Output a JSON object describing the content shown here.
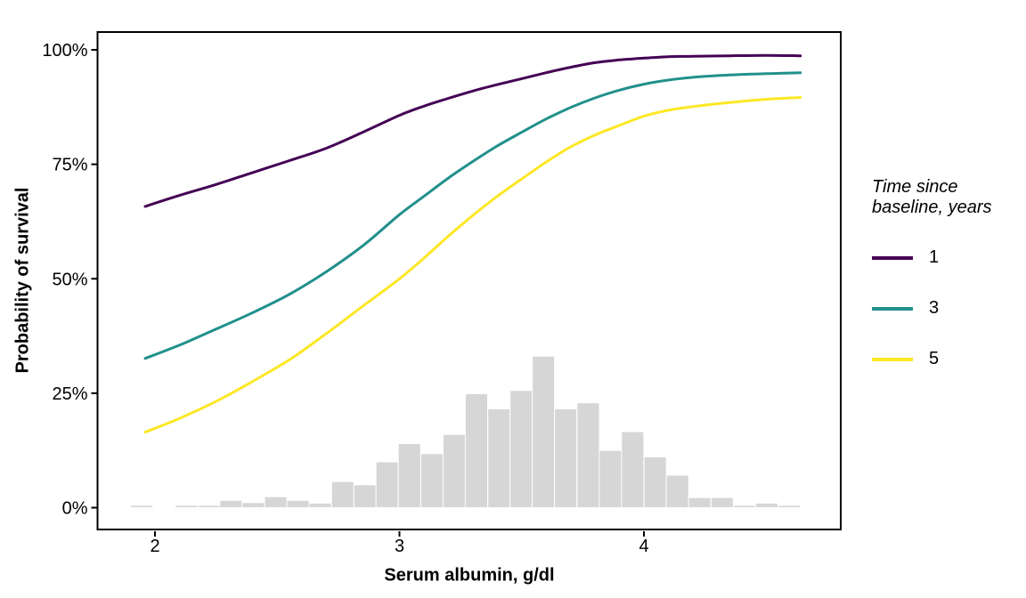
{
  "chart_data": {
    "type": "line+histogram",
    "title": "",
    "xlabel": "Serum albumin, g/dl",
    "ylabel": "Probability of survival",
    "legend_title": "Time since baseline, years",
    "legend_position": "right",
    "grid": false,
    "x_axis": {
      "ticks": [
        2,
        3,
        4
      ],
      "tick_labels": [
        "2",
        "3",
        "4"
      ],
      "range": [
        1.76,
        4.81
      ]
    },
    "y_axis": {
      "ticks_percent": [
        0,
        25,
        50,
        75,
        100
      ],
      "tick_labels": [
        "0%",
        "25%",
        "50%",
        "75%",
        "100%"
      ],
      "range_percent": [
        -5,
        104.5
      ]
    },
    "x": [
      1.96,
      2.1,
      2.25,
      2.4,
      2.55,
      2.7,
      2.85,
      3.0,
      3.1,
      3.2,
      3.3,
      3.4,
      3.5,
      3.6,
      3.7,
      3.8,
      3.9,
      4.0,
      4.1,
      4.2,
      4.35,
      4.5,
      4.64
    ],
    "series": [
      {
        "name": "1",
        "label": "1",
        "color": "#440154",
        "y_percent": [
          65.8,
          68.2,
          70.6,
          73.2,
          75.8,
          78.5,
          82.0,
          85.7,
          87.7,
          89.4,
          91.0,
          92.4,
          93.7,
          95.0,
          96.2,
          97.2,
          97.8,
          98.2,
          98.5,
          98.6,
          98.7,
          98.8,
          98.7
        ]
      },
      {
        "name": "3",
        "label": "3",
        "color": "#21908C",
        "y_percent": [
          32.6,
          35.5,
          39.0,
          42.6,
          46.6,
          51.5,
          57.2,
          64.0,
          68.0,
          72.0,
          75.6,
          79.0,
          82.0,
          84.9,
          87.4,
          89.5,
          91.2,
          92.5,
          93.4,
          94.0,
          94.5,
          94.8,
          95.0
        ]
      },
      {
        "name": "5",
        "label": "5",
        "color": "#FDE725",
        "y_percent": [
          16.5,
          19.5,
          23.2,
          27.6,
          32.3,
          38.0,
          44.0,
          50.0,
          54.5,
          59.3,
          63.8,
          68.0,
          71.8,
          75.5,
          78.8,
          81.4,
          83.5,
          85.5,
          86.8,
          87.6,
          88.5,
          89.2,
          89.6
        ]
      }
    ],
    "histogram": {
      "description": "distribution of observed serum albumin values",
      "color": "#D6D6D6",
      "bar_border_color": "#FFFFFF",
      "bin_width": 0.0913,
      "bin_centers": [
        1.946,
        2.037,
        2.128,
        2.22,
        2.311,
        2.402,
        2.494,
        2.585,
        2.676,
        2.768,
        2.859,
        2.95,
        3.041,
        3.133,
        3.224,
        3.315,
        3.407,
        3.498,
        3.589,
        3.68,
        3.772,
        3.863,
        3.954,
        4.046,
        4.137,
        4.228,
        4.32,
        4.411,
        4.502,
        4.594
      ],
      "heights_percent": [
        0.5,
        0,
        0.5,
        0.5,
        1.6,
        1.1,
        2.4,
        1.6,
        1.0,
        5.7,
        5.0,
        10.0,
        14.0,
        11.8,
        16.0,
        24.9,
        21.6,
        25.6,
        33.1,
        21.6,
        22.9,
        12.5,
        16.6,
        11.1,
        7.1,
        2.2,
        2.2,
        0.5,
        1.0,
        0.5
      ]
    },
    "colors": {
      "panel_border": "#000000",
      "tick": "#000000",
      "text": "#000000",
      "background": "#FFFFFF"
    }
  }
}
